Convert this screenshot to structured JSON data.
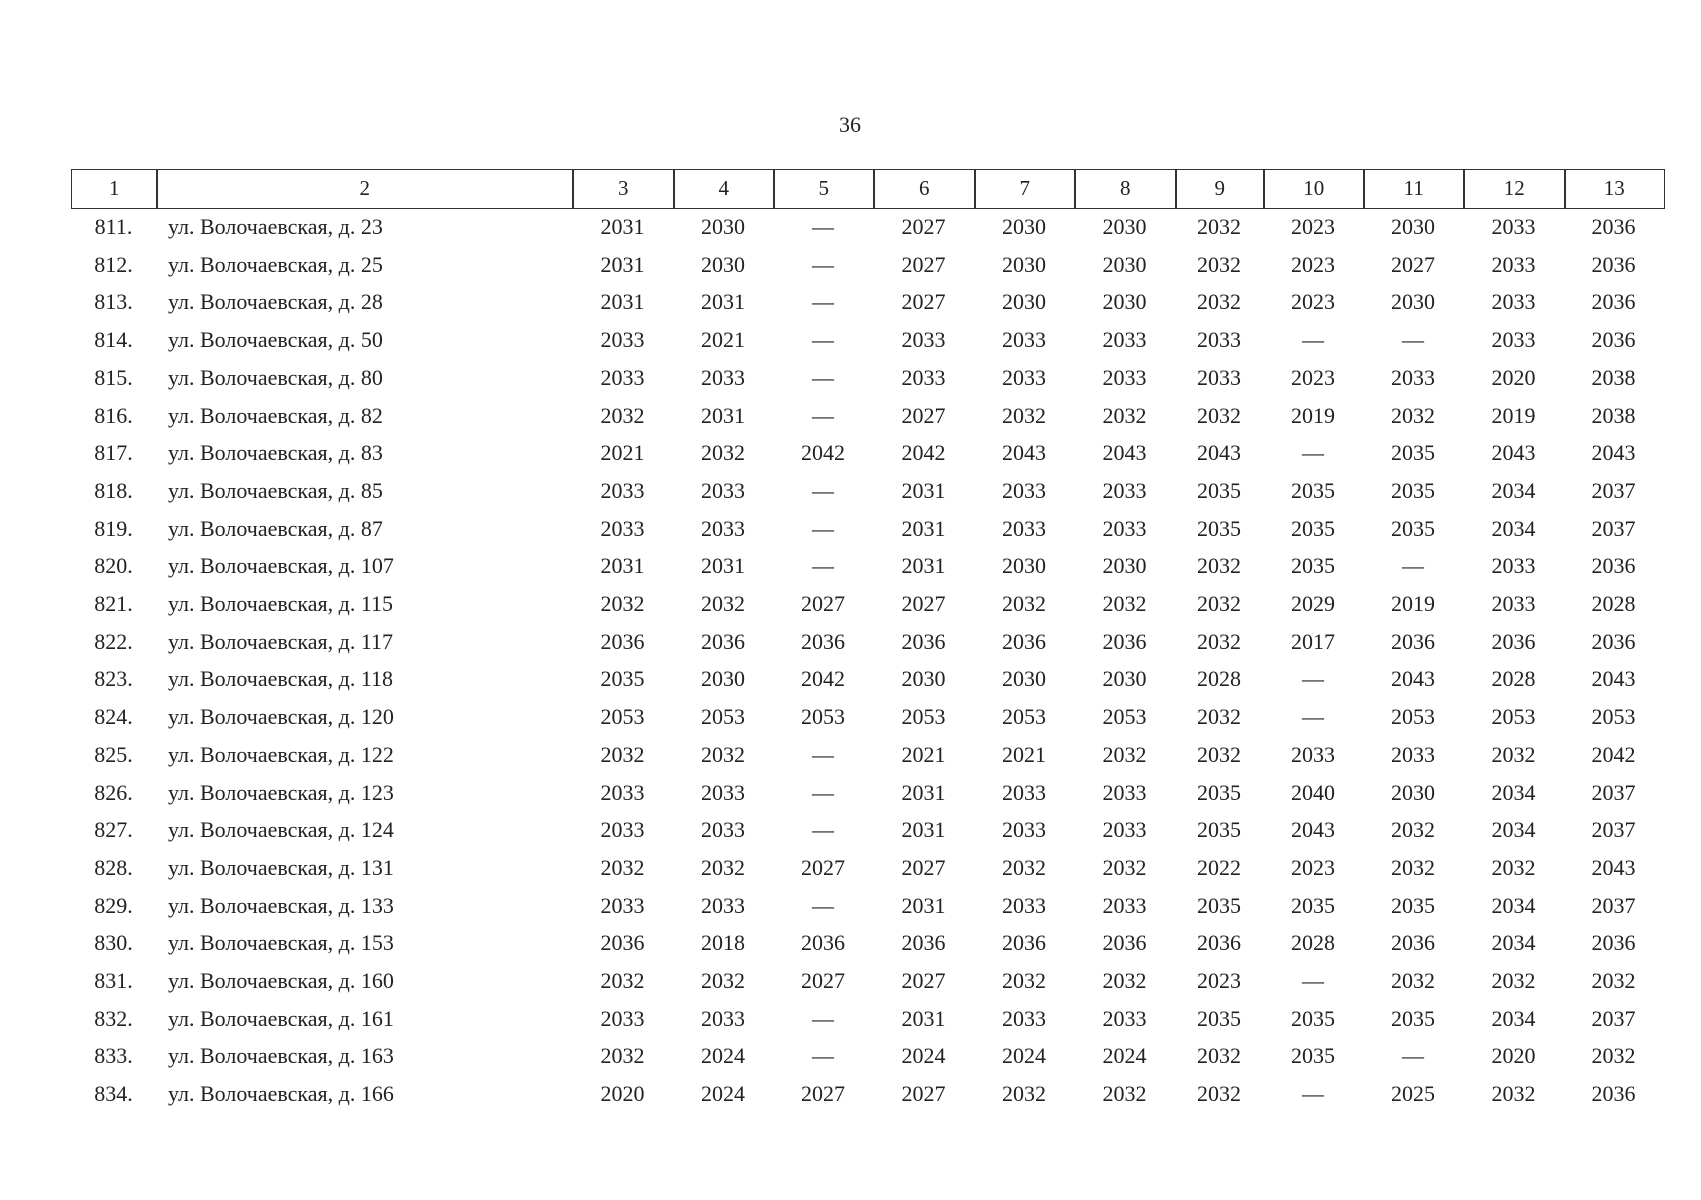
{
  "page_number": "36",
  "table": {
    "header": [
      "1",
      "2",
      "3",
      "4",
      "5",
      "6",
      "7",
      "8",
      "9",
      "10",
      "11",
      "12",
      "13"
    ],
    "rows": [
      [
        "811.",
        "ул. Волочаевская, д. 23",
        "2031",
        "2030",
        "—",
        "2027",
        "2030",
        "2030",
        "2032",
        "2023",
        "2030",
        "2033",
        "2036"
      ],
      [
        "812.",
        "ул. Волочаевская, д. 25",
        "2031",
        "2030",
        "—",
        "2027",
        "2030",
        "2030",
        "2032",
        "2023",
        "2027",
        "2033",
        "2036"
      ],
      [
        "813.",
        "ул. Волочаевская, д. 28",
        "2031",
        "2031",
        "—",
        "2027",
        "2030",
        "2030",
        "2032",
        "2023",
        "2030",
        "2033",
        "2036"
      ],
      [
        "814.",
        "ул. Волочаевская, д. 50",
        "2033",
        "2021",
        "—",
        "2033",
        "2033",
        "2033",
        "2033",
        "—",
        "—",
        "2033",
        "2036"
      ],
      [
        "815.",
        "ул. Волочаевская, д. 80",
        "2033",
        "2033",
        "—",
        "2033",
        "2033",
        "2033",
        "2033",
        "2023",
        "2033",
        "2020",
        "2038"
      ],
      [
        "816.",
        "ул. Волочаевская, д. 82",
        "2032",
        "2031",
        "—",
        "2027",
        "2032",
        "2032",
        "2032",
        "2019",
        "2032",
        "2019",
        "2038"
      ],
      [
        "817.",
        "ул. Волочаевская, д. 83",
        "2021",
        "2032",
        "2042",
        "2042",
        "2043",
        "2043",
        "2043",
        "—",
        "2035",
        "2043",
        "2043"
      ],
      [
        "818.",
        "ул. Волочаевская, д. 85",
        "2033",
        "2033",
        "—",
        "2031",
        "2033",
        "2033",
        "2035",
        "2035",
        "2035",
        "2034",
        "2037"
      ],
      [
        "819.",
        "ул. Волочаевская, д. 87",
        "2033",
        "2033",
        "—",
        "2031",
        "2033",
        "2033",
        "2035",
        "2035",
        "2035",
        "2034",
        "2037"
      ],
      [
        "820.",
        "ул. Волочаевская, д. 107",
        "2031",
        "2031",
        "—",
        "2031",
        "2030",
        "2030",
        "2032",
        "2035",
        "—",
        "2033",
        "2036"
      ],
      [
        "821.",
        "ул. Волочаевская, д. 115",
        "2032",
        "2032",
        "2027",
        "2027",
        "2032",
        "2032",
        "2032",
        "2029",
        "2019",
        "2033",
        "2028"
      ],
      [
        "822.",
        "ул. Волочаевская, д. 117",
        "2036",
        "2036",
        "2036",
        "2036",
        "2036",
        "2036",
        "2032",
        "2017",
        "2036",
        "2036",
        "2036"
      ],
      [
        "823.",
        "ул. Волочаевская, д. 118",
        "2035",
        "2030",
        "2042",
        "2030",
        "2030",
        "2030",
        "2028",
        "—",
        "2043",
        "2028",
        "2043"
      ],
      [
        "824.",
        "ул. Волочаевская, д. 120",
        "2053",
        "2053",
        "2053",
        "2053",
        "2053",
        "2053",
        "2032",
        "—",
        "2053",
        "2053",
        "2053"
      ],
      [
        "825.",
        "ул. Волочаевская, д. 122",
        "2032",
        "2032",
        "—",
        "2021",
        "2021",
        "2032",
        "2032",
        "2033",
        "2033",
        "2032",
        "2042"
      ],
      [
        "826.",
        "ул. Волочаевская, д. 123",
        "2033",
        "2033",
        "—",
        "2031",
        "2033",
        "2033",
        "2035",
        "2040",
        "2030",
        "2034",
        "2037"
      ],
      [
        "827.",
        "ул. Волочаевская, д. 124",
        "2033",
        "2033",
        "—",
        "2031",
        "2033",
        "2033",
        "2035",
        "2043",
        "2032",
        "2034",
        "2037"
      ],
      [
        "828.",
        "ул. Волочаевская, д. 131",
        "2032",
        "2032",
        "2027",
        "2027",
        "2032",
        "2032",
        "2022",
        "2023",
        "2032",
        "2032",
        "2043"
      ],
      [
        "829.",
        "ул. Волочаевская, д. 133",
        "2033",
        "2033",
        "—",
        "2031",
        "2033",
        "2033",
        "2035",
        "2035",
        "2035",
        "2034",
        "2037"
      ],
      [
        "830.",
        "ул. Волочаевская, д. 153",
        "2036",
        "2018",
        "2036",
        "2036",
        "2036",
        "2036",
        "2036",
        "2028",
        "2036",
        "2034",
        "2036"
      ],
      [
        "831.",
        "ул. Волочаевская, д. 160",
        "2032",
        "2032",
        "2027",
        "2027",
        "2032",
        "2032",
        "2023",
        "—",
        "2032",
        "2032",
        "2032"
      ],
      [
        "832.",
        "ул. Волочаевская, д. 161",
        "2033",
        "2033",
        "—",
        "2031",
        "2033",
        "2033",
        "2035",
        "2035",
        "2035",
        "2034",
        "2037"
      ],
      [
        "833.",
        "ул. Волочаевская, д. 163",
        "2032",
        "2024",
        "—",
        "2024",
        "2024",
        "2024",
        "2032",
        "2035",
        "—",
        "2020",
        "2032"
      ],
      [
        "834.",
        "ул. Волочаевская, д. 166",
        "2020",
        "2024",
        "2027",
        "2027",
        "2032",
        "2032",
        "2032",
        "—",
        "2025",
        "2032",
        "2036"
      ]
    ]
  }
}
